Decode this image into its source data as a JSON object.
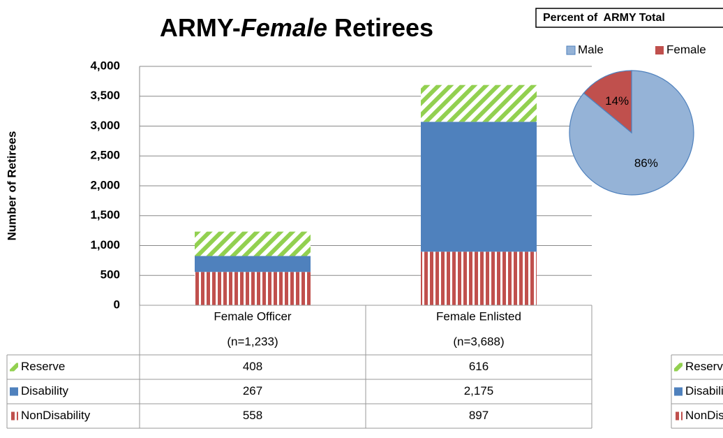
{
  "chart_data": [
    {
      "type": "bar",
      "stacked": true,
      "title": [
        "ARMY-",
        "Female",
        " Retirees"
      ],
      "y_label": "Number of Retirees",
      "categories": [
        "Female Officer",
        "Female Enlisted"
      ],
      "category_notes": [
        "(n=1,233)",
        "(n=3,688)"
      ],
      "series": [
        {
          "name": "NonDisability",
          "color": "#c0504d",
          "pattern": "vertical",
          "values": [
            558,
            897
          ]
        },
        {
          "name": "Disability",
          "color": "#4f81bd",
          "pattern": "solid",
          "values": [
            267,
            2175
          ],
          "value_labels": [
            "267",
            "2,175"
          ]
        },
        {
          "name": "Reserve",
          "color": "#92d050",
          "pattern": "diagonal",
          "values": [
            408,
            616
          ]
        }
      ],
      "ylim": [
        0,
        4000
      ],
      "yticks": [
        0,
        500,
        {
          "value": 1000,
          "label": "1,000"
        },
        {
          "value": 1500,
          "label": "1,500"
        },
        {
          "value": 2000,
          "label": "2,000"
        },
        {
          "value": 2500,
          "label": "2,500"
        },
        {
          "value": 3000,
          "label": "3,000"
        },
        {
          "value": 3500,
          "label": "3,500"
        },
        {
          "value": 4000,
          "label": "4,000"
        }
      ],
      "grid": true,
      "data_table": true
    },
    {
      "type": "pie",
      "title": "Percent of  ARMY Total",
      "categories": [
        "Male",
        "Female"
      ],
      "values": [
        86,
        14
      ],
      "value_labels": [
        "86%",
        "14%"
      ],
      "colors": [
        "#95b3d7",
        "#c0504d"
      ],
      "legend": "top"
    }
  ]
}
